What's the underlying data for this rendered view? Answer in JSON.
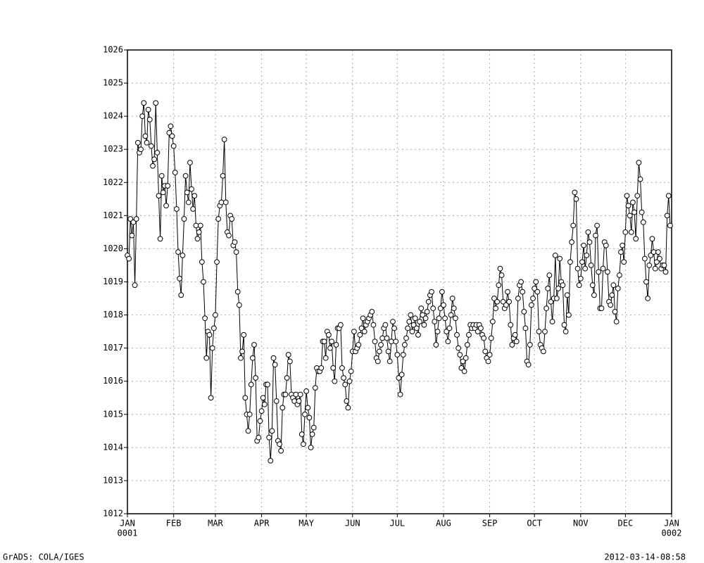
{
  "chart_data": {
    "type": "line",
    "xlim": [
      0,
      365
    ],
    "ylim": [
      1012,
      1026
    ],
    "yticks": [
      1012,
      1013,
      1014,
      1015,
      1016,
      1017,
      1018,
      1019,
      1020,
      1021,
      1022,
      1023,
      1024,
      1025,
      1026
    ],
    "xticks": [
      {
        "value": 0,
        "label": "JAN"
      },
      {
        "value": 31,
        "label": "FEB"
      },
      {
        "value": 59,
        "label": "MAR"
      },
      {
        "value": 90,
        "label": "APR"
      },
      {
        "value": 120,
        "label": "MAY"
      },
      {
        "value": 151,
        "label": "JUN"
      },
      {
        "value": 181,
        "label": "JUL"
      },
      {
        "value": 212,
        "label": "AUG"
      },
      {
        "value": 243,
        "label": "SEP"
      },
      {
        "value": 273,
        "label": "OCT"
      },
      {
        "value": 304,
        "label": "NOV"
      },
      {
        "value": 334,
        "label": "DEC"
      },
      {
        "value": 365,
        "label": "JAN"
      }
    ],
    "xtick_sublabels": [
      {
        "value": 0,
        "label": "0001"
      },
      {
        "value": 365,
        "label": "0002"
      }
    ],
    "grid": true,
    "color": "#000000",
    "footer_left": "GrADS: COLA/IGES",
    "footer_right": "2012-03-14-08:58",
    "x": [
      0,
      1,
      2,
      3,
      4,
      5,
      6,
      7,
      8,
      9,
      10,
      11,
      12,
      13,
      14,
      15,
      16,
      17,
      18,
      19,
      20,
      21,
      22,
      23,
      24,
      25,
      26,
      27,
      28,
      29,
      30,
      31,
      32,
      33,
      34,
      35,
      36,
      37,
      38,
      39,
      40,
      41,
      42,
      43,
      44,
      45,
      46,
      47,
      48,
      49,
      50,
      51,
      52,
      53,
      54,
      55,
      56,
      57,
      58,
      59,
      60,
      61,
      62,
      63,
      64,
      65,
      66,
      67,
      68,
      69,
      70,
      71,
      72,
      73,
      74,
      75,
      76,
      77,
      78,
      79,
      80,
      81,
      82,
      83,
      84,
      85,
      86,
      87,
      88,
      89,
      90,
      91,
      92,
      93,
      94,
      95,
      96,
      97,
      98,
      99,
      100,
      101,
      102,
      103,
      104,
      105,
      106,
      107,
      108,
      109,
      110,
      111,
      112,
      113,
      114,
      115,
      116,
      117,
      118,
      119,
      120,
      121,
      122,
      123,
      124,
      125,
      126,
      127,
      128,
      129,
      130,
      131,
      132,
      133,
      134,
      135,
      136,
      137,
      138,
      139,
      140,
      141,
      142,
      143,
      144,
      145,
      146,
      147,
      148,
      149,
      150,
      151,
      152,
      153,
      154,
      155,
      156,
      157,
      158,
      159,
      160,
      161,
      162,
      163,
      164,
      165,
      166,
      167,
      168,
      169,
      170,
      171,
      172,
      173,
      174,
      175,
      176,
      177,
      178,
      179,
      180,
      181,
      182,
      183,
      184,
      185,
      186,
      187,
      188,
      189,
      190,
      191,
      192,
      193,
      194,
      195,
      196,
      197,
      198,
      199,
      200,
      201,
      202,
      203,
      204,
      205,
      206,
      207,
      208,
      209,
      210,
      211,
      212,
      213,
      214,
      215,
      216,
      217,
      218,
      219,
      220,
      221,
      222,
      223,
      224,
      225,
      226,
      227,
      228,
      229,
      230,
      231,
      232,
      233,
      234,
      235,
      236,
      237,
      238,
      239,
      240,
      241,
      242,
      243,
      244,
      245,
      246,
      247,
      248,
      249,
      250,
      251,
      252,
      253,
      254,
      255,
      256,
      257,
      258,
      259,
      260,
      261,
      262,
      263,
      264,
      265,
      266,
      267,
      268,
      269,
      270,
      271,
      272,
      273,
      274,
      275,
      276,
      277,
      278,
      279,
      280,
      281,
      282,
      283,
      284,
      285,
      286,
      287,
      288,
      289,
      290,
      291,
      292,
      293,
      294,
      295,
      296,
      297,
      298,
      299,
      300,
      301,
      302,
      303,
      304,
      305,
      306,
      307,
      308,
      309,
      310,
      311,
      312,
      313,
      314,
      315,
      316,
      317,
      318,
      319,
      320,
      321,
      322,
      323,
      324,
      325,
      326,
      327,
      328,
      329,
      330,
      331,
      332,
      333,
      334,
      335,
      336,
      337,
      338,
      339,
      340,
      341,
      342,
      343,
      344,
      345,
      346,
      347,
      348,
      349,
      350,
      351,
      352,
      353,
      354,
      355,
      356,
      357,
      358,
      359,
      360,
      361,
      362,
      363,
      364
    ],
    "values": [
      1019.8,
      1019.7,
      1020.9,
      1020.4,
      1020.8,
      1018.9,
      1020.9,
      1023.2,
      1022.9,
      1023.0,
      1024.0,
      1024.4,
      1023.4,
      1023.2,
      1024.2,
      1023.9,
      1023.1,
      1022.5,
      1022.7,
      1024.4,
      1022.9,
      1021.6,
      1020.3,
      1022.2,
      1021.7,
      1021.9,
      1021.3,
      1021.9,
      1023.5,
      1023.7,
      1023.4,
      1023.1,
      1022.3,
      1021.2,
      1019.9,
      1019.1,
      1018.6,
      1019.8,
      1020.9,
      1022.2,
      1021.7,
      1021.4,
      1022.6,
      1021.8,
      1021.2,
      1021.6,
      1020.7,
      1020.3,
      1020.5,
      1020.7,
      1019.6,
      1019.0,
      1017.9,
      1016.7,
      1017.5,
      1017.4,
      1015.5,
      1017.0,
      1017.6,
      1018.0,
      1019.6,
      1020.9,
      1021.3,
      1021.4,
      1022.2,
      1023.3,
      1021.4,
      1020.5,
      1020.4,
      1021.0,
      1020.9,
      1020.1,
      1020.2,
      1019.9,
      1018.7,
      1018.3,
      1016.7,
      1016.9,
      1017.4,
      1015.5,
      1015.0,
      1014.5,
      1015.0,
      1015.9,
      1016.7,
      1017.1,
      1016.1,
      1014.2,
      1014.3,
      1014.8,
      1015.1,
      1015.5,
      1015.3,
      1015.9,
      1015.9,
      1014.3,
      1013.6,
      1014.5,
      1016.7,
      1016.5,
      1015.4,
      1014.2,
      1014.1,
      1013.9,
      1015.2,
      1015.6,
      1015.6,
      1016.1,
      1016.8,
      1016.6,
      1015.6,
      1015.5,
      1015.4,
      1015.6,
      1015.3,
      1015.4,
      1015.6,
      1014.4,
      1014.1,
      1015.0,
      1015.7,
      1015.2,
      1014.9,
      1014.0,
      1014.4,
      1014.6,
      1015.8,
      1016.4,
      1016.3,
      1016.3,
      1016.4,
      1017.2,
      1017.2,
      1016.7,
      1017.5,
      1017.4,
      1017.0,
      1017.2,
      1016.4,
      1016.0,
      1017.1,
      1017.6,
      1017.6,
      1017.7,
      1016.4,
      1016.1,
      1015.9,
      1015.4,
      1015.2,
      1016.0,
      1016.3,
      1016.9,
      1017.5,
      1016.9,
      1017.0,
      1017.1,
      1017.4,
      1017.6,
      1017.9,
      1017.5,
      1017.7,
      1017.8,
      1017.9,
      1018.0,
      1018.1,
      1017.7,
      1017.2,
      1016.7,
      1016.6,
      1016.9,
      1017.1,
      1017.3,
      1017.6,
      1017.7,
      1017.3,
      1016.9,
      1016.6,
      1017.2,
      1017.8,
      1017.6,
      1017.2,
      1016.8,
      1016.1,
      1015.6,
      1016.2,
      1016.8,
      1017.1,
      1017.3,
      1017.6,
      1017.8,
      1018.0,
      1017.5,
      1017.7,
      1017.9,
      1017.6,
      1017.4,
      1017.8,
      1018.2,
      1018.0,
      1017.7,
      1017.9,
      1018.1,
      1018.4,
      1018.6,
      1018.7,
      1018.2,
      1017.8,
      1017.1,
      1017.5,
      1017.9,
      1018.2,
      1018.7,
      1018.3,
      1017.9,
      1017.5,
      1017.2,
      1017.6,
      1018.0,
      1018.5,
      1018.2,
      1017.9,
      1017.4,
      1017.0,
      1016.8,
      1016.4,
      1016.6,
      1016.3,
      1016.7,
      1017.1,
      1017.4,
      1017.7,
      1017.6,
      1017.7,
      1017.6,
      1017.7,
      1017.5,
      1017.7,
      1017.6,
      1017.4,
      1017.3,
      1016.9,
      1016.7,
      1016.6,
      1016.8,
      1017.3,
      1017.8,
      1018.5,
      1018.2,
      1018.4,
      1018.9,
      1019.4,
      1019.2,
      1018.4,
      1018.2,
      1018.3,
      1018.7,
      1018.4,
      1017.7,
      1017.1,
      1017.3,
      1017.4,
      1017.2,
      1018.5,
      1018.9,
      1019.0,
      1018.7,
      1018.1,
      1017.6,
      1016.6,
      1016.5,
      1017.1,
      1018.3,
      1018.5,
      1018.8,
      1019.0,
      1018.7,
      1017.5,
      1017.1,
      1017.0,
      1016.9,
      1017.5,
      1018.2,
      1018.8,
      1019.2,
      1018.4,
      1017.8,
      1018.5,
      1019.8,
      1018.5,
      1018.8,
      1019.7,
      1019.0,
      1018.9,
      1017.7,
      1017.5,
      1018.6,
      1018.0,
      1019.6,
      1020.2,
      1020.7,
      1021.7,
      1021.5,
      1019.4,
      1018.9,
      1019.1,
      1019.6,
      1020.1,
      1019.4,
      1019.8,
      1020.5,
      1020.2,
      1019.5,
      1018.9,
      1018.6,
      1020.4,
      1020.7,
      1019.3,
      1018.2,
      1018.2,
      1019.4,
      1020.2,
      1020.1,
      1019.3,
      1018.4,
      1018.3,
      1018.6,
      1018.9,
      1018.1,
      1017.8,
      1018.8,
      1019.2,
      1019.9,
      1020.1,
      1019.6,
      1020.5,
      1021.6,
      1021.3,
      1021.0,
      1020.5,
      1021.4,
      1021.1,
      1020.3,
      1021.6,
      1022.6,
      1022.1,
      1021.1,
      1020.8,
      1019.7,
      1019.0,
      1018.5,
      1019.5,
      1019.8,
      1020.3,
      1019.9,
      1019.4,
      1019.6,
      1019.9,
      1019.7,
      1019.4,
      1019.5,
      1019.5,
      1019.3,
      1021.0,
      1021.6,
      1020.7
    ]
  }
}
